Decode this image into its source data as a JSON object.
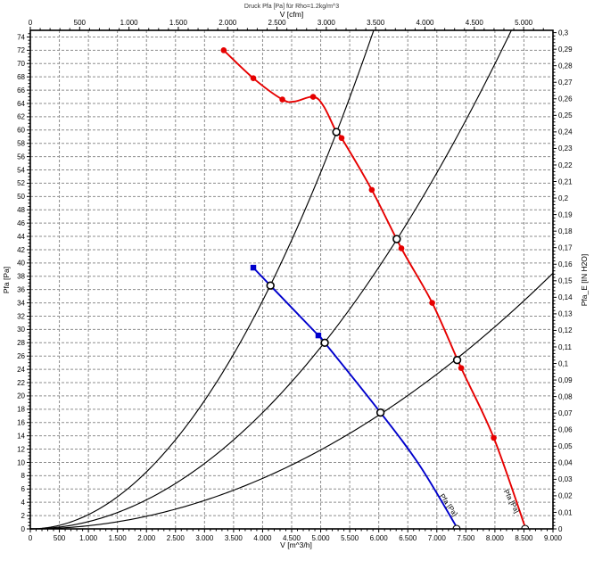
{
  "chart_data": {
    "type": "line",
    "title": "Druck Pfa [Pa] für Rho=1.2kg/m^3",
    "background": "#ffffff",
    "grid": "dashed-gray",
    "legend_position": "none",
    "colors": {
      "fan_curve": "#e60000",
      "second_curve": "#0000cc",
      "system_curves": "#000000",
      "grid": "#8d8d8d"
    },
    "axes": {
      "bottom": {
        "label": "V [m^3/h]",
        "min": 0,
        "max": 9000,
        "major": 500,
        "minor": 100,
        "tick_labels": [
          "0",
          "500",
          "1.000",
          "1.500",
          "2.000",
          "2.500",
          "3.000",
          "3.500",
          "4.000",
          "4.500",
          "5.000",
          "5.500",
          "6.000",
          "6.500",
          "7.000",
          "7.500",
          "8.000",
          "8.500",
          "9.000"
        ]
      },
      "top": {
        "label": "V [cfm]",
        "min": 0,
        "max_labeled": 5000,
        "major": 500,
        "minor": 100,
        "m3h_per_unit": 1.699,
        "tick_labels": [
          "0",
          "500",
          "1.000",
          "1.500",
          "2.000",
          "2.500",
          "3.000",
          "3.500",
          "4.000",
          "4.500",
          "5.000"
        ]
      },
      "left": {
        "label": "Pfa [Pa]",
        "min": 0,
        "max": 75,
        "major": 2,
        "minor": 0.5,
        "tick_labels": [
          "0",
          "2",
          "4",
          "6",
          "8",
          "10",
          "12",
          "14",
          "16",
          "18",
          "20",
          "22",
          "24",
          "26",
          "28",
          "30",
          "32",
          "34",
          "36",
          "38",
          "40",
          "42",
          "44",
          "46",
          "48",
          "50",
          "52",
          "54",
          "56",
          "58",
          "60",
          "62",
          "64",
          "66",
          "68",
          "70",
          "72",
          "74"
        ]
      },
      "right": {
        "label": "Pfa_E [IN H2O]",
        "min": 0,
        "max_labeled": 0.3,
        "major": 0.01,
        "minor": 0.002,
        "pa_per_unit": 248.84,
        "tick_labels": [
          "0",
          "0,01",
          "0,02",
          "0,03",
          "0,04",
          "0,05",
          "0,06",
          "0,07",
          "0,08",
          "0,09",
          "0,1",
          "0,11",
          "0,12",
          "0,13",
          "0,14",
          "0,15",
          "0,16",
          "0,17",
          "0,18",
          "0,19",
          "0,2",
          "0,21",
          "0,22",
          "0,23",
          "0,24",
          "0,25",
          "0,26",
          "0,27",
          "0,28",
          "0,29",
          "0,3"
        ]
      }
    },
    "series": [
      {
        "name": "fan-pressure-curve",
        "color": "#e60000",
        "marker": "filled-circle",
        "marker_points": [
          [
            3330,
            72.0
          ],
          [
            3840,
            67.8
          ],
          [
            4340,
            64.6
          ],
          [
            4870,
            65.0
          ],
          [
            5360,
            58.8
          ],
          [
            5880,
            51.0
          ],
          [
            6390,
            42.2
          ],
          [
            6920,
            34.0
          ],
          [
            7420,
            24.2
          ],
          [
            7980,
            13.7
          ]
        ],
        "path_points": [
          [
            3330,
            72.0
          ],
          [
            3840,
            67.8
          ],
          [
            4340,
            64.6
          ],
          [
            4550,
            64.3
          ],
          [
            4870,
            65.0
          ],
          [
            5050,
            63.6
          ],
          [
            5270,
            59.7
          ],
          [
            5360,
            58.8
          ],
          [
            5880,
            51.0
          ],
          [
            6390,
            42.2
          ],
          [
            6920,
            34.0
          ],
          [
            7420,
            24.2
          ],
          [
            7980,
            13.7
          ],
          [
            8520,
            0.3
          ]
        ],
        "axis_intercept": 8520,
        "inline_label": {
          "text": "Pfa [Pa]",
          "v": 8250,
          "p": 4.0,
          "angle": 62
        }
      },
      {
        "name": "second-fan-pressure-curve",
        "color": "#0000cc",
        "marker": "filled-square",
        "marker_points": [
          [
            3840,
            39.3
          ],
          [
            4960,
            29.1
          ]
        ],
        "path_points": [
          [
            3840,
            39.3
          ],
          [
            4135,
            36.6
          ],
          [
            4960,
            29.1
          ],
          [
            5070,
            28.0
          ],
          [
            6030,
            17.5
          ],
          [
            6700,
            9.6
          ],
          [
            7340,
            0.3
          ]
        ],
        "axis_intercept": 7340,
        "inline_label": {
          "text": "Pfa [Pa]",
          "v": 7170,
          "p": 3.4,
          "angle": 55
        }
      }
    ],
    "system_curves": [
      {
        "name": "system-curve-1",
        "k_pa_per_m3h2": 2.145e-06
      },
      {
        "name": "system-curve-2",
        "k_pa_per_m3h2": 1.093e-06
      },
      {
        "name": "system-curve-3",
        "k_pa_per_m3h2": 4.75e-07
      }
    ],
    "operating_points": [
      {
        "curve": "fan-pressure-curve",
        "v": 5270,
        "p": 59.7
      },
      {
        "curve": "fan-pressure-curve",
        "v": 6310,
        "p": 43.6
      },
      {
        "curve": "fan-pressure-curve",
        "v": 7350,
        "p": 25.4
      },
      {
        "curve": "second-fan-pressure-curve",
        "v": 4135,
        "p": 36.6
      },
      {
        "curve": "second-fan-pressure-curve",
        "v": 5070,
        "p": 28.0
      },
      {
        "curve": "second-fan-pressure-curve",
        "v": 6030,
        "p": 17.5
      }
    ]
  }
}
